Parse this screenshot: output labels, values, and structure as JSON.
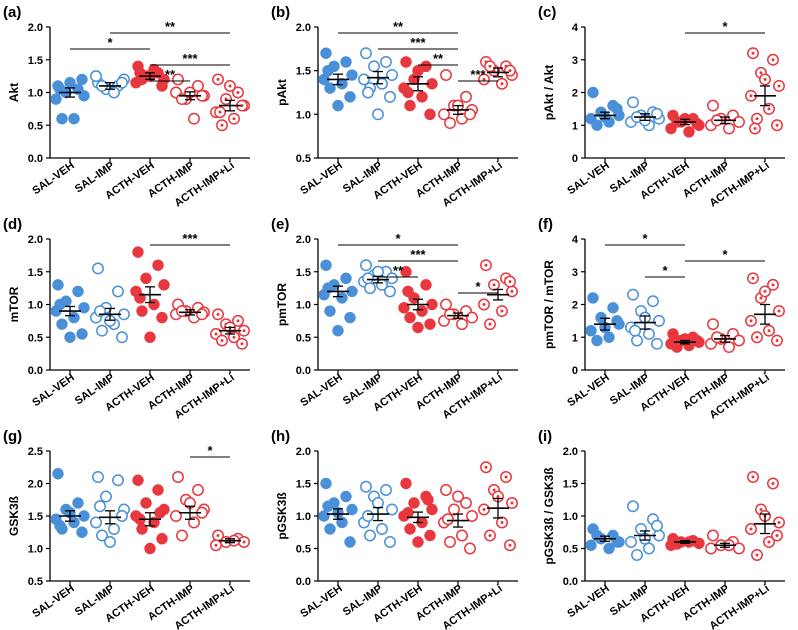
{
  "figure": {
    "groups": [
      "SAL-VEH",
      "SAL-IMP",
      "ACTH-VEH",
      "ACTH-IMP",
      "ACTH-IMP+Li"
    ],
    "group_colors": [
      "#4a90d9",
      "#4a90d9",
      "#e8373e",
      "#e8373e",
      "#e8373e"
    ],
    "group_markers": [
      "filled",
      "open",
      "filled",
      "open",
      "dotted"
    ]
  },
  "chart_data": [
    {
      "panel": "(a)",
      "type": "scatter",
      "ylabel": "Akt",
      "ylim": [
        0.0,
        2.0
      ],
      "yticks": [
        "0.0",
        "0.5",
        "1.0",
        "1.5",
        "2.0"
      ],
      "categories": [
        "SAL-VEH",
        "SAL-IMP",
        "ACTH-VEH",
        "ACTH-IMP",
        "ACTH-IMP+Li"
      ],
      "means": [
        1.0,
        1.1,
        1.25,
        0.95,
        0.8
      ],
      "sems": [
        0.07,
        0.05,
        0.05,
        0.06,
        0.08
      ],
      "points": [
        [
          1.1,
          1.05,
          1.0,
          0.95,
          0.9,
          0.6,
          0.6,
          1.2,
          1.15,
          1.05
        ],
        [
          1.15,
          1.1,
          1.05,
          1.2,
          1.25,
          1.0,
          1.1,
          1.15
        ],
        [
          1.4,
          1.3,
          1.25,
          1.2,
          1.15,
          1.35,
          1.2,
          1.1,
          1.25,
          1.3
        ],
        [
          1.2,
          1.1,
          0.9,
          0.95,
          1.0,
          0.6,
          0.9,
          0.95,
          1.0
        ],
        [
          1.2,
          1.0,
          0.9,
          0.8,
          0.7,
          0.6,
          0.5,
          0.8,
          1.1,
          0.7
        ]
      ],
      "annotations": [
        {
          "from": "SAL-VEH",
          "to": "ACTH-VEH",
          "label": "*"
        },
        {
          "from": "SAL-IMP",
          "to": "ACTH-IMP+Li",
          "label": "**"
        },
        {
          "from": "ACTH-VEH",
          "to": "ACTH-IMP+Li",
          "label": "***"
        },
        {
          "from": "ACTH-VEH",
          "to": "ACTH-IMP",
          "label": "**"
        }
      ]
    },
    {
      "panel": "(b)",
      "type": "scatter",
      "ylabel": "pAkt",
      "ylim": [
        0.5,
        2.0
      ],
      "yticks": [
        "0.5",
        "1.0",
        "1.5",
        "2.0"
      ],
      "categories": [
        "SAL-VEH",
        "SAL-IMP",
        "ACTH-VEH",
        "ACTH-IMP",
        "ACTH-IMP+Li"
      ],
      "means": [
        1.4,
        1.42,
        1.35,
        1.05,
        1.48
      ],
      "sems": [
        0.06,
        0.07,
        0.08,
        0.05,
        0.05
      ],
      "points": [
        [
          1.7,
          1.6,
          1.55,
          1.45,
          1.4,
          1.35,
          1.3,
          1.2,
          1.1,
          1.5
        ],
        [
          1.7,
          1.6,
          1.55,
          1.45,
          1.4,
          1.35,
          1.3,
          1.2,
          1.0,
          1.25
        ],
        [
          1.6,
          1.55,
          1.4,
          1.35,
          1.3,
          1.2,
          1.1,
          1.0,
          1.5,
          1.25
        ],
        [
          1.45,
          1.2,
          1.1,
          1.05,
          1.0,
          0.95,
          0.9,
          1.0,
          1.1
        ],
        [
          1.6,
          1.55,
          1.5,
          1.45,
          1.4,
          1.35,
          1.55,
          1.5
        ]
      ],
      "annotations": [
        {
          "from": "SAL-VEH",
          "to": "ACTH-IMP",
          "label": "**"
        },
        {
          "from": "SAL-IMP",
          "to": "ACTH-IMP",
          "label": "***"
        },
        {
          "from": "ACTH-VEH",
          "to": "ACTH-IMP",
          "label": "**"
        },
        {
          "from": "ACTH-IMP",
          "to": "ACTH-IMP+Li",
          "label": "***"
        }
      ]
    },
    {
      "panel": "(c)",
      "type": "scatter",
      "ylabel": "pAkt / Akt",
      "ylim": [
        0,
        4
      ],
      "yticks": [
        "0",
        "1",
        "2",
        "3",
        "4"
      ],
      "categories": [
        "SAL-VEH",
        "SAL-IMP",
        "ACTH-VEH",
        "ACTH-IMP",
        "ACTH-IMP+Li"
      ],
      "means": [
        1.3,
        1.25,
        1.1,
        1.15,
        1.9
      ],
      "sems": [
        0.1,
        0.1,
        0.08,
        0.1,
        0.3
      ],
      "points": [
        [
          2.0,
          1.6,
          1.4,
          1.3,
          1.2,
          1.1,
          1.0,
          1.5,
          1.25
        ],
        [
          1.7,
          1.4,
          1.3,
          1.2,
          1.1,
          1.0,
          1.25,
          1.35,
          1.15
        ],
        [
          1.3,
          1.2,
          1.1,
          1.0,
          0.9,
          0.8,
          1.1,
          1.05,
          1.2
        ],
        [
          1.6,
          1.3,
          1.2,
          1.1,
          1.0,
          0.9,
          1.15
        ],
        [
          3.2,
          3.0,
          2.6,
          2.2,
          1.9,
          1.5,
          1.2,
          1.0,
          2.4,
          0.9
        ]
      ],
      "annotations": [
        {
          "from": "ACTH-VEH",
          "to": "ACTH-IMP+Li",
          "label": "*"
        }
      ]
    },
    {
      "panel": "(d)",
      "type": "scatter",
      "ylabel": "mTOR",
      "ylim": [
        0.0,
        2.0
      ],
      "yticks": [
        "0.0",
        "0.5",
        "1.0",
        "1.5",
        "2.0"
      ],
      "categories": [
        "SAL-VEH",
        "SAL-IMP",
        "ACTH-VEH",
        "ACTH-IMP",
        "ACTH-IMP+Li"
      ],
      "means": [
        0.9,
        0.85,
        1.15,
        0.88,
        0.6
      ],
      "sems": [
        0.07,
        0.09,
        0.12,
        0.04,
        0.05
      ],
      "points": [
        [
          1.3,
          1.2,
          1.05,
          0.95,
          0.9,
          0.8,
          0.7,
          0.55,
          0.5,
          1.0
        ],
        [
          1.55,
          1.2,
          0.95,
          0.85,
          0.8,
          0.7,
          0.6,
          0.5,
          0.75,
          0.9
        ],
        [
          1.8,
          1.6,
          1.4,
          1.3,
          1.2,
          1.0,
          0.9,
          0.8,
          0.5,
          1.1
        ],
        [
          1.0,
          0.95,
          0.9,
          0.88,
          0.85,
          0.8,
          0.9,
          0.85
        ],
        [
          0.85,
          0.75,
          0.7,
          0.6,
          0.55,
          0.5,
          0.45,
          0.4,
          0.65
        ]
      ],
      "annotations": [
        {
          "from": "ACTH-VEH",
          "to": "ACTH-IMP+Li",
          "label": "***"
        }
      ]
    },
    {
      "panel": "(e)",
      "type": "scatter",
      "ylabel": "pmTOR",
      "ylim": [
        0.0,
        2.0
      ],
      "yticks": [
        "0.0",
        "0.5",
        "1.0",
        "1.5",
        "2.0"
      ],
      "categories": [
        "SAL-VEH",
        "SAL-IMP",
        "ACTH-VEH",
        "ACTH-IMP",
        "ACTH-IMP+Li"
      ],
      "means": [
        1.2,
        1.38,
        1.0,
        0.83,
        1.15
      ],
      "sems": [
        0.08,
        0.05,
        0.08,
        0.04,
        0.08
      ],
      "points": [
        [
          1.6,
          1.4,
          1.3,
          1.2,
          1.15,
          1.1,
          0.9,
          0.8,
          0.6,
          1.25
        ],
        [
          1.6,
          1.5,
          1.45,
          1.4,
          1.35,
          1.3,
          1.25,
          1.2,
          1.5,
          1.4
        ],
        [
          1.5,
          1.3,
          1.1,
          1.0,
          0.95,
          0.9,
          0.8,
          0.7,
          0.65,
          1.2
        ],
        [
          1.0,
          0.9,
          0.85,
          0.8,
          0.75,
          0.7,
          0.85
        ],
        [
          1.6,
          1.4,
          1.3,
          1.2,
          1.0,
          0.9,
          0.7,
          1.35
        ]
      ],
      "annotations": [
        {
          "from": "SAL-VEH",
          "to": "ACTH-IMP",
          "label": "*"
        },
        {
          "from": "SAL-IMP",
          "to": "ACTH-IMP",
          "label": "***"
        },
        {
          "from": "SAL-IMP",
          "to": "ACTH-VEH",
          "label": "**"
        },
        {
          "from": "ACTH-IMP",
          "to": "ACTH-IMP+Li",
          "label": "*"
        }
      ]
    },
    {
      "panel": "(f)",
      "type": "scatter",
      "ylabel": "pmTOR / mTOR",
      "ylim": [
        0,
        4
      ],
      "yticks": [
        "0",
        "1",
        "2",
        "3",
        "4"
      ],
      "categories": [
        "SAL-VEH",
        "SAL-IMP",
        "ACTH-VEH",
        "ACTH-IMP",
        "ACTH-IMP+Li"
      ],
      "means": [
        1.4,
        1.45,
        0.85,
        0.95,
        1.7
      ],
      "sems": [
        0.18,
        0.2,
        0.05,
        0.1,
        0.3
      ],
      "points": [
        [
          2.2,
          1.9,
          1.6,
          1.4,
          1.2,
          1.0,
          0.9,
          1.5,
          1.3
        ],
        [
          2.3,
          2.1,
          1.8,
          1.5,
          1.3,
          1.1,
          0.9,
          0.8,
          1.6,
          1.2
        ],
        [
          1.1,
          1.0,
          0.9,
          0.85,
          0.8,
          0.75,
          0.7,
          0.9,
          0.95
        ],
        [
          1.4,
          1.1,
          0.95,
          0.9,
          0.8,
          0.7,
          1.0
        ],
        [
          2.8,
          2.6,
          2.2,
          1.8,
          1.5,
          1.2,
          1.0,
          0.9,
          2.4
        ]
      ],
      "annotations": [
        {
          "from": "SAL-VEH",
          "to": "ACTH-VEH",
          "label": "*"
        },
        {
          "from": "SAL-IMP",
          "to": "ACTH-VEH",
          "label": "*"
        },
        {
          "from": "ACTH-VEH",
          "to": "ACTH-IMP+Li",
          "label": "*"
        }
      ]
    },
    {
      "panel": "(g)",
      "type": "scatter",
      "ylabel": "GSK3ß",
      "ylim": [
        0.5,
        2.5
      ],
      "yticks": [
        "0.5",
        "1.0",
        "1.5",
        "2.0",
        "2.5"
      ],
      "categories": [
        "SAL-VEH",
        "SAL-IMP",
        "ACTH-VEH",
        "ACTH-IMP",
        "ACTH-IMP+Li"
      ],
      "means": [
        1.5,
        1.48,
        1.45,
        1.55,
        1.12
      ],
      "sems": [
        0.08,
        0.1,
        0.1,
        0.1,
        0.03
      ],
      "points": [
        [
          2.15,
          1.7,
          1.6,
          1.5,
          1.45,
          1.4,
          1.3,
          1.25,
          1.55,
          1.35
        ],
        [
          2.1,
          2.05,
          1.8,
          1.6,
          1.4,
          1.3,
          1.2,
          1.5,
          1.1,
          1.65
        ],
        [
          2.05,
          1.9,
          1.7,
          1.6,
          1.5,
          1.4,
          1.3,
          1.15,
          1.0,
          1.45,
          1.55
        ],
        [
          2.1,
          1.9,
          1.75,
          1.6,
          1.5,
          1.4,
          1.2,
          1.55,
          1.7
        ],
        [
          1.2,
          1.15,
          1.1,
          1.1,
          1.05,
          1.12
        ]
      ],
      "annotations": [
        {
          "from": "ACTH-IMP",
          "to": "ACTH-IMP+Li",
          "label": "*"
        }
      ]
    },
    {
      "panel": "(h)",
      "type": "scatter",
      "ylabel": "pGSK3ß",
      "ylim": [
        0.0,
        2.0
      ],
      "yticks": [
        "0.0",
        "0.5",
        "1.0",
        "1.5",
        "2.0"
      ],
      "categories": [
        "SAL-VEH",
        "SAL-IMP",
        "ACTH-VEH",
        "ACTH-IMP",
        "ACTH-IMP+Li"
      ],
      "means": [
        1.03,
        1.03,
        0.98,
        0.93,
        1.12
      ],
      "sems": [
        0.08,
        0.1,
        0.08,
        0.1,
        0.15
      ],
      "points": [
        [
          1.5,
          1.3,
          1.2,
          1.1,
          1.0,
          0.9,
          0.8,
          0.6,
          1.05,
          1.15
        ],
        [
          1.45,
          1.4,
          1.3,
          1.1,
          0.9,
          0.8,
          0.7,
          0.6,
          1.2,
          1.0
        ],
        [
          1.5,
          1.3,
          1.2,
          1.1,
          1.0,
          0.9,
          0.8,
          0.7,
          0.6,
          1.05,
          1.25
        ],
        [
          1.4,
          1.2,
          1.1,
          1.0,
          0.9,
          0.7,
          0.6,
          0.5,
          1.3,
          0.95
        ],
        [
          1.75,
          1.6,
          1.4,
          1.2,
          1.1,
          0.9,
          0.7,
          0.55,
          1.3
        ]
      ],
      "annotations": []
    },
    {
      "panel": "(i)",
      "type": "scatter",
      "ylabel": "pGSK3ß / GSK3ß",
      "ylim": [
        0.0,
        2.0
      ],
      "yticks": [
        "0.0",
        "0.5",
        "1.0",
        "1.5",
        "2.0"
      ],
      "categories": [
        "SAL-VEH",
        "SAL-IMP",
        "ACTH-VEH",
        "ACTH-IMP",
        "ACTH-IMP+Li"
      ],
      "means": [
        0.65,
        0.7,
        0.6,
        0.55,
        0.88
      ],
      "sems": [
        0.04,
        0.07,
        0.02,
        0.03,
        0.15
      ],
      "points": [
        [
          0.8,
          0.7,
          0.65,
          0.6,
          0.55,
          0.5,
          0.7,
          0.6
        ],
        [
          1.15,
          0.95,
          0.8,
          0.7,
          0.6,
          0.5,
          0.4,
          0.85,
          0.65
        ],
        [
          0.65,
          0.62,
          0.6,
          0.58,
          0.55,
          0.6,
          0.57
        ],
        [
          0.7,
          0.6,
          0.55,
          0.5,
          0.5,
          0.55
        ],
        [
          1.6,
          1.5,
          1.1,
          0.9,
          0.8,
          0.6,
          0.4,
          0.7,
          1.0
        ]
      ],
      "annotations": []
    }
  ]
}
